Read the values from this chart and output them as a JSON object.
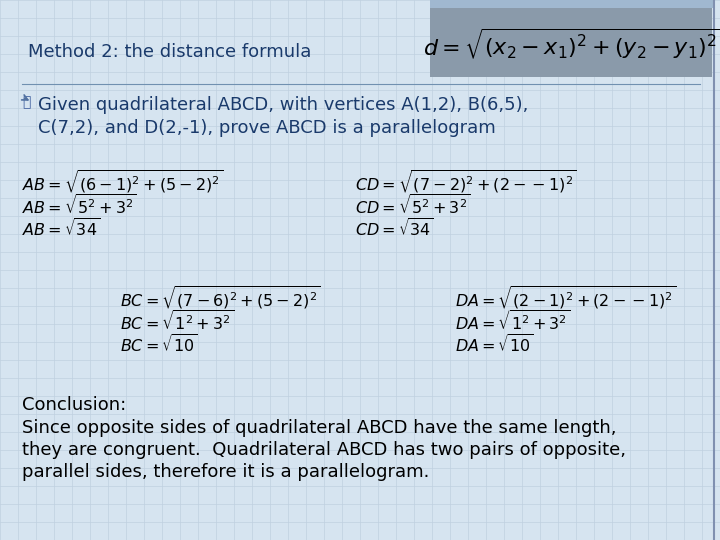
{
  "bg_color": "#d6e4f0",
  "slide_bg": "#e8f0f8",
  "title_text": "Method 2: the distance formula",
  "title_color": "#1a3a6b",
  "formula_bg": "#8a9aaa",
  "given_color": "#1a3a6b",
  "given_text_line1": "Given quadrilateral ABCD, with vertices A(1,2), B(6,5),",
  "given_text_line2": "C(7,2), and D(2,-1), prove ABCD is a parallelogram",
  "math_color": "#000000",
  "conclusion_color": "#000000",
  "AB_lines": [
    "$AB = \\sqrt{(6-1)^2 + (5-2)^2}$",
    "$AB = \\sqrt{5^2 + 3^2}$",
    "$AB = \\sqrt{34}$"
  ],
  "CD_lines": [
    "$CD = \\sqrt{(7-2)^2 + (2--1)^2}$",
    "$CD = \\sqrt{5^2 + 3^2}$",
    "$CD = \\sqrt{34}$"
  ],
  "BC_lines": [
    "$BC = \\sqrt{(7-6)^2 + (5-2)^2}$",
    "$BC = \\sqrt{1^2 + 3^2}$",
    "$BC = \\sqrt{10}$"
  ],
  "DA_lines": [
    "$DA = \\sqrt{(2-1)^2 + (2--1)^2}$",
    "$DA = \\sqrt{1^2 + 3^2}$",
    "$DA = \\sqrt{10}$"
  ],
  "conclusion_title": "Conclusion:",
  "conclusion_lines": [
    "Since opposite sides of quadrilateral ABCD have the same length,",
    "they are congruent.  Quadrilateral ABCD has two pairs of opposite,",
    "parallel sides, therefore it is a parallelogram."
  ],
  "grid_color": "#c0d0e0",
  "font_size_title": 13,
  "font_size_given": 13,
  "font_size_math": 11.5,
  "font_size_conclusion": 13
}
